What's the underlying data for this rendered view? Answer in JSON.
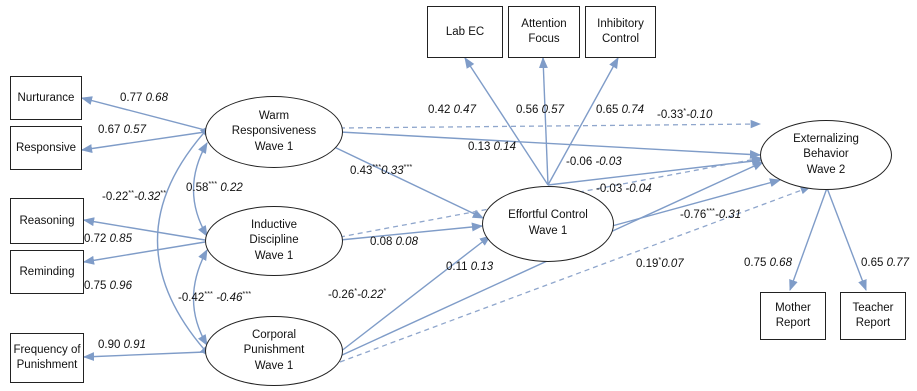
{
  "observed": {
    "lab_ec": "Lab EC",
    "attention_focus": "Attention\nFocus",
    "inhibitory_control": "Inhibitory\nControl",
    "nurturance": "Nurturance",
    "responsive": "Responsive",
    "reasoning": "Reasoning",
    "reminding": "Reminding",
    "frequency_of_punishment": "Frequency of\nPunishment",
    "mother_report": "Mother\nReport",
    "teacher_report": "Teacher\nReport"
  },
  "latent": {
    "warm_responsiveness": "Warm\nResponsiveness\nWave 1",
    "inductive_discipline": "Inductive\nDiscipline\nWave 1",
    "corporal_punishment": "Corporal\nPunishment\nWave 1",
    "effortful_control": "Effortful Control\nWave 1",
    "externalizing_behavior": "Externalizing\nBehavior\nWave 2"
  },
  "coefficients": {
    "nurturance": {
      "a": "0.77",
      "b": "0.68"
    },
    "responsive": {
      "a": "0.67",
      "b": "0.57"
    },
    "reasoning": {
      "a": "0.72",
      "b": "0.85"
    },
    "reminding": {
      "a": "0.75",
      "b": "0.96"
    },
    "frequency": {
      "a": "0.90",
      "b": "0.91"
    },
    "lab_ec": {
      "a": "0.42",
      "b": "0.47"
    },
    "attention": {
      "a": "0.56",
      "b": "0.57"
    },
    "inhibitory": {
      "a": "0.65",
      "b": "0.74"
    },
    "mother": {
      "a": "0.75",
      "b": "0.68"
    },
    "teacher": {
      "a": "0.65",
      "b": "0.77"
    },
    "warm_inductive": {
      "a": "0.58",
      "sa": "***",
      "b": "0.22"
    },
    "warm_corporal": {
      "a": "-0.22",
      "sa": "**",
      "b": "-0.32",
      "sb": "**"
    },
    "inductive_corporal": {
      "a": "-0.42",
      "sa": "***",
      "b": "-0.46",
      "sb": "***"
    },
    "warm_effortful": {
      "a": "0.43",
      "sa": "***",
      "b": "0.33",
      "sb": "***"
    },
    "warm_externalizing_dashed": {
      "a": "-0.33",
      "sa": "*",
      "b": "-0.10"
    },
    "warm_externalizing": {
      "a": "0.13",
      "b": "0.14"
    },
    "inductive_externalizing": {
      "a": "-0.06",
      "b": "-0.03"
    },
    "effortful_externalizing_upper": {
      "a": "-0.03",
      "b": "-0.04"
    },
    "effortful_externalizing": {
      "a": "-0.76",
      "sa": "***",
      "b": "-0.31"
    },
    "inductive_effortful": {
      "a": "0.08",
      "b": "0.08"
    },
    "corporal_externalizing_solid": {
      "a": "0.11",
      "b": "0.13"
    },
    "corporal_effortful": {
      "a": "-0.26",
      "sa": "*",
      "b": "-0.22",
      "sb": "*"
    },
    "corporal_externalizing_dashed": {
      "a": "0.19",
      "sa": "*",
      "b": "0.07"
    }
  },
  "colors": {
    "path": "#7f9cc8",
    "dashed": "#8fa6cc",
    "border": "#222222"
  }
}
